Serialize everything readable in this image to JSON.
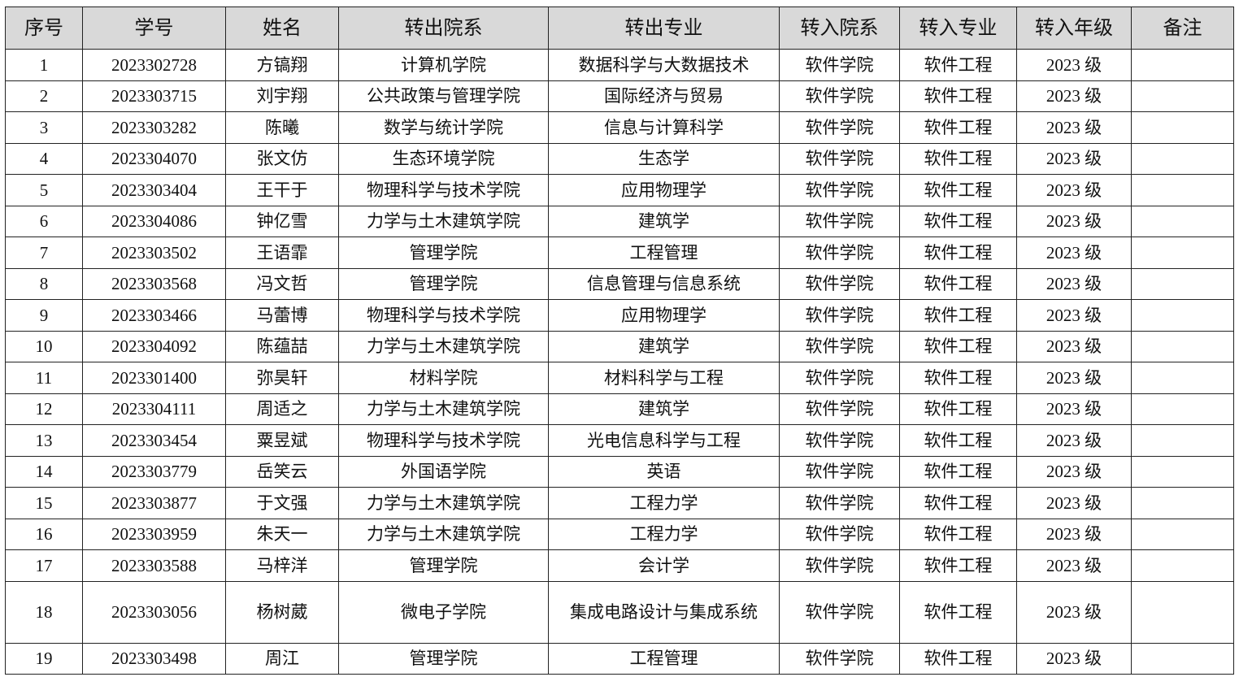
{
  "table": {
    "headers": [
      "序号",
      "学号",
      "姓名",
      "转出院系",
      "转出专业",
      "转入院系",
      "转入专业",
      "转入年级",
      "备注"
    ],
    "rows": [
      [
        "1",
        "2023302728",
        "方镐翔",
        "计算机学院",
        "数据科学与大数据技术",
        "软件学院",
        "软件工程",
        "2023 级",
        ""
      ],
      [
        "2",
        "2023303715",
        "刘宇翔",
        "公共政策与管理学院",
        "国际经济与贸易",
        "软件学院",
        "软件工程",
        "2023 级",
        ""
      ],
      [
        "3",
        "2023303282",
        "陈曦",
        "数学与统计学院",
        "信息与计算科学",
        "软件学院",
        "软件工程",
        "2023 级",
        ""
      ],
      [
        "4",
        "2023304070",
        "张文仿",
        "生态环境学院",
        "生态学",
        "软件学院",
        "软件工程",
        "2023 级",
        ""
      ],
      [
        "5",
        "2023303404",
        "王干于",
        "物理科学与技术学院",
        "应用物理学",
        "软件学院",
        "软件工程",
        "2023 级",
        ""
      ],
      [
        "6",
        "2023304086",
        "钟亿雪",
        "力学与土木建筑学院",
        "建筑学",
        "软件学院",
        "软件工程",
        "2023 级",
        ""
      ],
      [
        "7",
        "2023303502",
        "王语霏",
        "管理学院",
        "工程管理",
        "软件学院",
        "软件工程",
        "2023 级",
        ""
      ],
      [
        "8",
        "2023303568",
        "冯文哲",
        "管理学院",
        "信息管理与信息系统",
        "软件学院",
        "软件工程",
        "2023 级",
        ""
      ],
      [
        "9",
        "2023303466",
        "马蕾博",
        "物理科学与技术学院",
        "应用物理学",
        "软件学院",
        "软件工程",
        "2023 级",
        ""
      ],
      [
        "10",
        "2023304092",
        "陈蕴喆",
        "力学与土木建筑学院",
        "建筑学",
        "软件学院",
        "软件工程",
        "2023 级",
        ""
      ],
      [
        "11",
        "2023301400",
        "弥昊轩",
        "材料学院",
        "材料科学与工程",
        "软件学院",
        "软件工程",
        "2023 级",
        ""
      ],
      [
        "12",
        "2023304111",
        "周适之",
        "力学与土木建筑学院",
        "建筑学",
        "软件学院",
        "软件工程",
        "2023 级",
        ""
      ],
      [
        "13",
        "2023303454",
        "粟昱斌",
        "物理科学与技术学院",
        "光电信息科学与工程",
        "软件学院",
        "软件工程",
        "2023 级",
        ""
      ],
      [
        "14",
        "2023303779",
        "岳笑云",
        "外国语学院",
        "英语",
        "软件学院",
        "软件工程",
        "2023 级",
        ""
      ],
      [
        "15",
        "2023303877",
        "于文强",
        "力学与土木建筑学院",
        "工程力学",
        "软件学院",
        "软件工程",
        "2023 级",
        ""
      ],
      [
        "16",
        "2023303959",
        "朱天一",
        "力学与土木建筑学院",
        "工程力学",
        "软件学院",
        "软件工程",
        "2023 级",
        ""
      ],
      [
        "17",
        "2023303588",
        "马梓洋",
        "管理学院",
        "会计学",
        "软件学院",
        "软件工程",
        "2023 级",
        ""
      ],
      [
        "18",
        "2023303056",
        "杨树葳",
        "微电子学院",
        "集成电路设计与集成系统",
        "软件学院",
        "软件工程",
        "2023 级",
        ""
      ],
      [
        "19",
        "2023303498",
        "周江",
        "管理学院",
        "工程管理",
        "软件学院",
        "软件工程",
        "2023 级",
        ""
      ]
    ]
  }
}
